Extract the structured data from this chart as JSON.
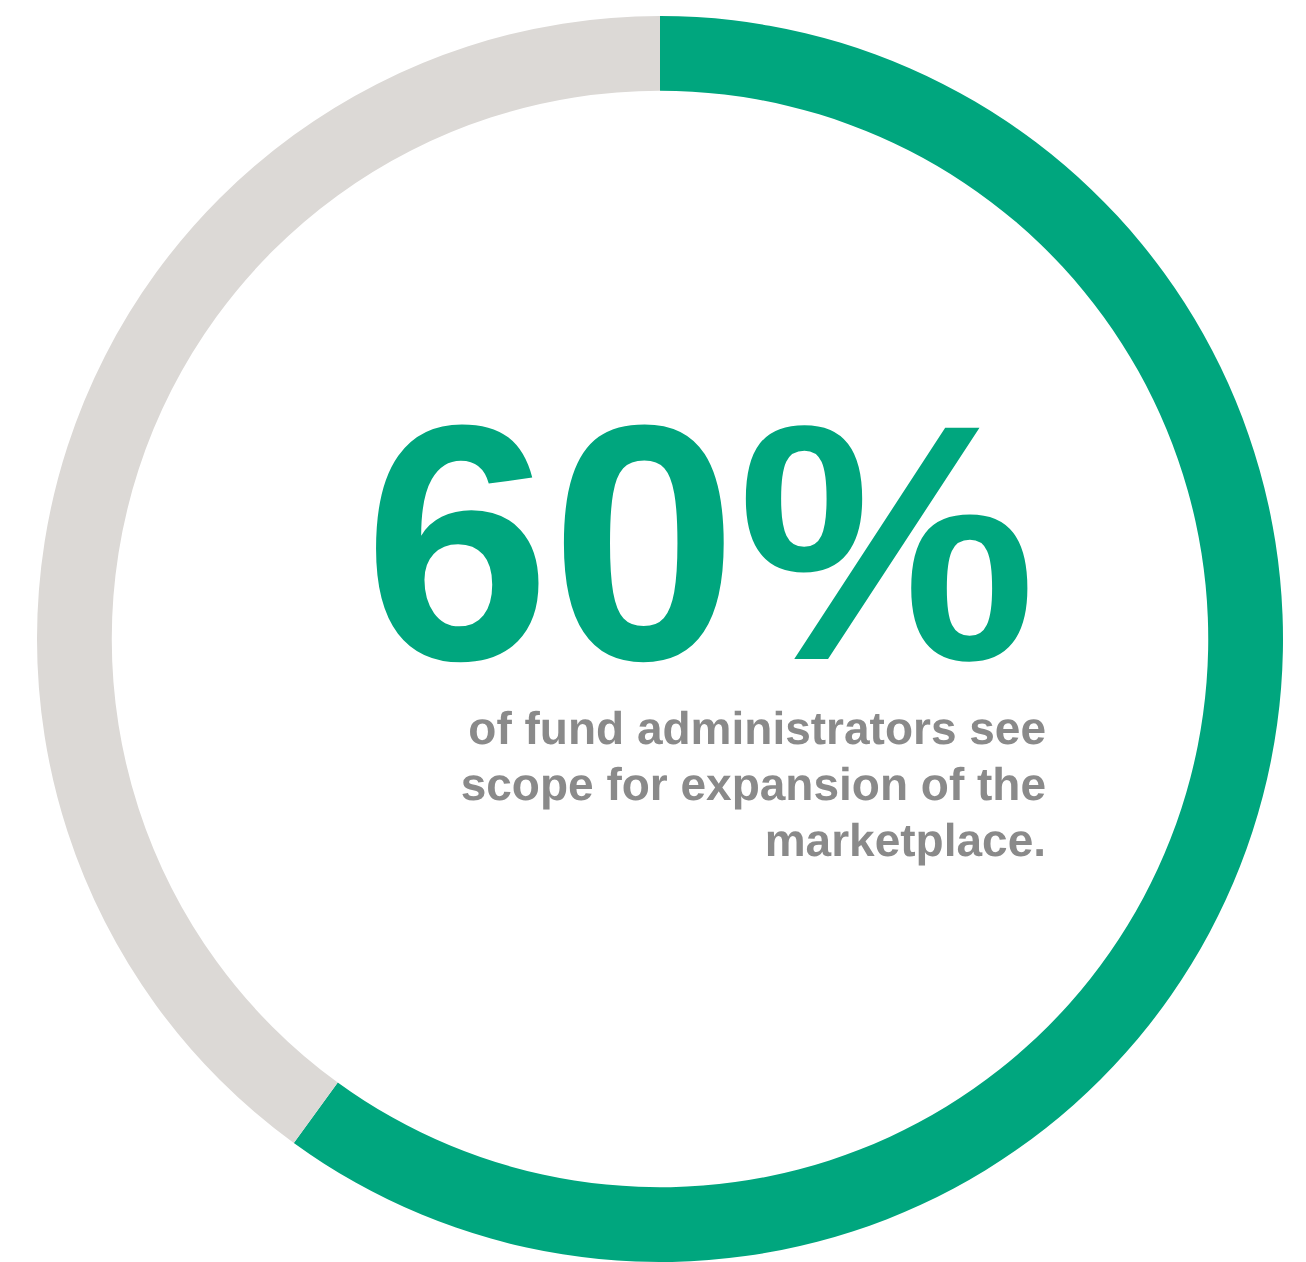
{
  "chart_data": {
    "type": "donut",
    "categories": [
      null,
      null
    ],
    "values": [
      60,
      40
    ],
    "colors": [
      "#00a67e",
      "#dcd9d6"
    ],
    "value_labels": [
      "60%",
      null
    ],
    "legend": false,
    "annotations": [
      "of fund administrators see scope for expansion of the marketplace."
    ]
  }
}
